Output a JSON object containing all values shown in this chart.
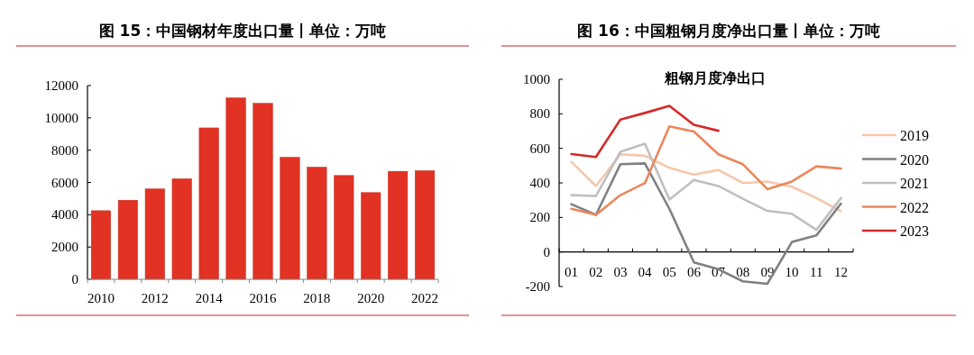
{
  "chart_data": [
    {
      "type": "bar",
      "title": "图 15：中国钢材年度出口量丨单位：万吨",
      "categories": [
        "2010",
        null,
        "2012",
        null,
        "2014",
        null,
        "2016",
        null,
        "2018",
        null,
        "2020",
        null,
        "2022"
      ],
      "values": [
        4250,
        4900,
        5600,
        6230,
        9380,
        11240,
        10900,
        7560,
        6950,
        6430,
        5370,
        6690,
        6730
      ],
      "color": "#e23223",
      "ylim": [
        0,
        12000
      ],
      "yticks": [
        0,
        2000,
        4000,
        6000,
        8000,
        10000,
        12000
      ],
      "grid": false
    },
    {
      "type": "line",
      "title": "图 16：中国粗钢月度净出口量丨单位：万吨",
      "subtitle": "粗钢月度净出口",
      "categories": [
        "01",
        "02",
        "03",
        "04",
        "05",
        "06",
        "07",
        "08",
        "09",
        "10",
        "11",
        "12"
      ],
      "series": [
        {
          "name": "2019",
          "color": "#f6c7ab",
          "values": [
            522,
            382,
            566,
            557,
            487,
            448,
            475,
            399,
            408,
            378,
            312,
            236
          ]
        },
        {
          "name": "2020",
          "color": "#808080",
          "values": [
            277,
            215,
            508,
            513,
            250,
            -60,
            -100,
            -170,
            -184,
            58,
            96,
            280
          ]
        },
        {
          "name": "2021",
          "color": "#bfbfbf",
          "values": [
            329,
            324,
            580,
            627,
            303,
            417,
            382,
            308,
            238,
            221,
            128,
            312
          ]
        },
        {
          "name": "2022",
          "color": "#ea875c",
          "values": [
            250,
            215,
            329,
            399,
            727,
            697,
            566,
            508,
            364,
            408,
            496,
            483
          ]
        },
        {
          "name": "2023",
          "color": "#d42a2a",
          "values": [
            567,
            550,
            767,
            805,
            846,
            736,
            702,
            null,
            null,
            null,
            null,
            null
          ]
        }
      ],
      "ylim": [
        -200,
        1000
      ],
      "yticks": [
        -200,
        0,
        200,
        400,
        600,
        800,
        1000
      ],
      "grid": false,
      "legend": "right",
      "line_style": "solid",
      "marker": "none"
    }
  ]
}
